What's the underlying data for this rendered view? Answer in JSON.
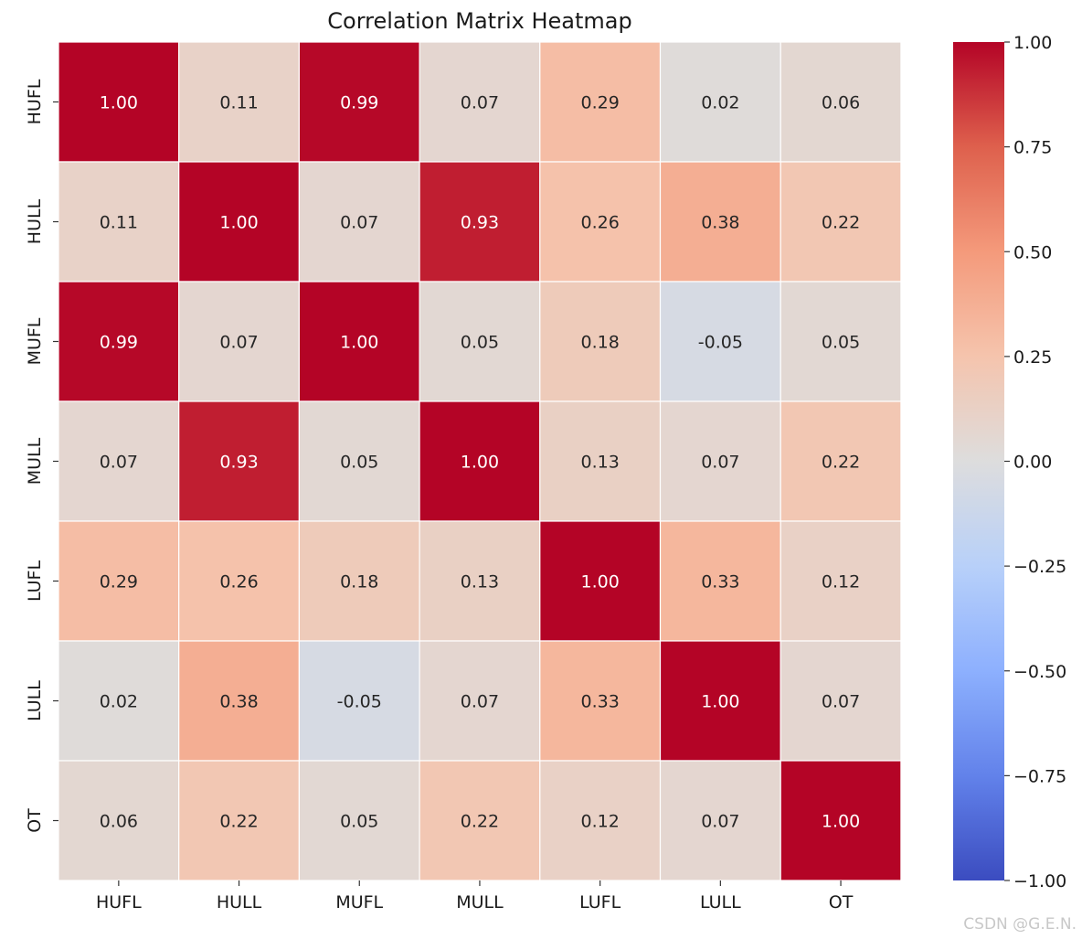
{
  "chart_data": {
    "type": "heatmap",
    "title": "Correlation Matrix Heatmap",
    "xlabel": "",
    "ylabel": "",
    "x_labels": [
      "HUFL",
      "HULL",
      "MUFL",
      "MULL",
      "LUFL",
      "LULL",
      "OT"
    ],
    "y_labels": [
      "HUFL",
      "HULL",
      "MUFL",
      "MULL",
      "LUFL",
      "LULL",
      "OT"
    ],
    "values": [
      [
        1.0,
        0.11,
        0.99,
        0.07,
        0.29,
        0.02,
        0.06
      ],
      [
        0.11,
        1.0,
        0.07,
        0.93,
        0.26,
        0.38,
        0.22
      ],
      [
        0.99,
        0.07,
        1.0,
        0.05,
        0.18,
        -0.05,
        0.05
      ],
      [
        0.07,
        0.93,
        0.05,
        1.0,
        0.13,
        0.07,
        0.22
      ],
      [
        0.29,
        0.26,
        0.18,
        0.13,
        1.0,
        0.33,
        0.12
      ],
      [
        0.02,
        0.38,
        -0.05,
        0.07,
        0.33,
        1.0,
        0.07
      ],
      [
        0.06,
        0.22,
        0.05,
        0.22,
        0.12,
        0.07,
        1.0
      ]
    ],
    "value_labels": [
      [
        "1.00",
        "0.11",
        "0.99",
        "0.07",
        "0.29",
        "0.02",
        "0.06"
      ],
      [
        "0.11",
        "1.00",
        "0.07",
        "0.93",
        "0.26",
        "0.38",
        "0.22"
      ],
      [
        "0.99",
        "0.07",
        "1.00",
        "0.05",
        "0.18",
        "-0.05",
        "0.05"
      ],
      [
        "0.07",
        "0.93",
        "0.05",
        "1.00",
        "0.13",
        "0.07",
        "0.22"
      ],
      [
        "0.29",
        "0.26",
        "0.18",
        "0.13",
        "1.00",
        "0.33",
        "0.12"
      ],
      [
        "0.02",
        "0.38",
        "-0.05",
        "0.07",
        "0.33",
        "1.00",
        "0.07"
      ],
      [
        "0.06",
        "0.22",
        "0.05",
        "0.22",
        "0.12",
        "0.07",
        "1.00"
      ]
    ],
    "colormap": "coolwarm",
    "vmin": -1.0,
    "vmax": 1.0,
    "colorbar_ticks": [
      1.0,
      0.75,
      0.5,
      0.25,
      0.0,
      -0.25,
      -0.5,
      -0.75,
      -1.0
    ],
    "colorbar_tick_labels": [
      "1.00",
      "0.75",
      "0.50",
      "0.25",
      "0.00",
      "−0.25",
      "−0.50",
      "−0.75",
      "−1.00"
    ],
    "gridline_color": "#ffffff",
    "annot_light_color": "#ffffff",
    "annot_dark_color": "#262626"
  },
  "watermark": "CSDN @G.E.N."
}
